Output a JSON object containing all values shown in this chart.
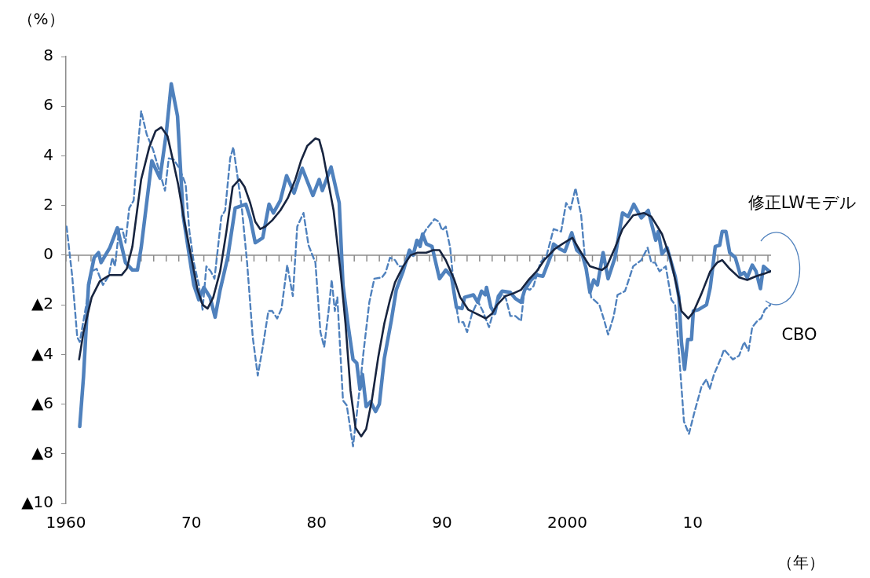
{
  "chart_data": {
    "type": "line",
    "xlabel": "（年）",
    "ylabel": "（%）",
    "xlim": [
      1960,
      2016.25
    ],
    "xticks": [
      1960,
      {
        "value": 1970,
        "label": "70"
      },
      {
        "value": 1980,
        "label": "80"
      },
      {
        "value": 1990,
        "label": "90"
      },
      2000,
      {
        "value": 2010,
        "label": "10"
      }
    ],
    "ylim": [
      -10,
      8
    ],
    "yticks": [
      {
        "value": -10,
        "label": "▲10"
      },
      {
        "value": -8,
        "label": "▲8"
      },
      {
        "value": -6,
        "label": "▲6"
      },
      {
        "value": -4,
        "label": "▲4"
      },
      {
        "value": -2,
        "label": "▲2"
      },
      0,
      2,
      4,
      6,
      8
    ],
    "grid": false,
    "legend": false,
    "marker": "none",
    "ref_lines": [
      {
        "axis": "y",
        "value": 0,
        "color": "#8c8c8c"
      }
    ],
    "annotations": [
      "修正LWモデル",
      "CBO"
    ],
    "series": [
      {
        "color": "#4f81bd",
        "line_style": "solid",
        "x": [
          1961.1,
          1961.4,
          1961.8,
          1962.25,
          1962.6,
          1962.8,
          1963.5,
          1964.1,
          1964.75,
          1965.3,
          1965.7,
          1966.0,
          1966.85,
          1967.5,
          1968.0,
          1968.4,
          1968.9,
          1969.35,
          1970.2,
          1970.6,
          1971.0,
          1971.5,
          1971.9,
          1972.3,
          1972.9,
          1973.5,
          1974.35,
          1974.7,
          1975.1,
          1975.7,
          1976.2,
          1976.55,
          1977.1,
          1977.6,
          1978.2,
          1978.85,
          1979.7,
          1980.2,
          1980.45,
          1981.15,
          1981.8,
          1982.1,
          1982.5,
          1982.9,
          1983.2,
          1983.45,
          1983.65,
          1983.95,
          1984.3,
          1984.7,
          1985.0,
          1985.4,
          1985.95,
          1986.35,
          1986.9,
          1987.4,
          1987.7,
          1988.0,
          1988.25,
          1988.45,
          1988.75,
          1989.2,
          1989.8,
          1990.3,
          1990.75,
          1991.15,
          1991.6,
          1991.8,
          1992.5,
          1992.85,
          1993.15,
          1993.45,
          1993.55,
          1993.9,
          1994.2,
          1994.5,
          1994.8,
          1995.45,
          1995.85,
          1996.3,
          1996.6,
          1997.1,
          1997.55,
          1998.05,
          1998.7,
          1998.9,
          1999.4,
          1999.8,
          2000.35,
          2000.75,
          2001.2,
          2001.5,
          2001.8,
          2002.1,
          2002.4,
          2002.85,
          2003.25,
          2003.8,
          2004.4,
          2004.85,
          2005.3,
          2005.9,
          2006.45,
          2007.05,
          2007.25,
          2007.55,
          2007.95,
          2008.6,
          2008.9,
          2009.1,
          2009.35,
          2009.6,
          2009.9,
          2010.05,
          2010.45,
          2011.1,
          2011.4,
          2011.8,
          2012.15,
          2012.35,
          2012.65,
          2012.95,
          2013.4,
          2013.8,
          2014.1,
          2014.35,
          2014.75,
          2015.05,
          2015.4,
          2015.65,
          2016.1
        ],
        "values": [
          -6.9,
          -4.9,
          -1.2,
          -0.1,
          0.1,
          -0.3,
          0.3,
          1.1,
          -0.3,
          -0.6,
          -0.6,
          0.3,
          3.8,
          3.1,
          4.9,
          6.9,
          5.6,
          1.6,
          -1.2,
          -1.8,
          -1.3,
          -1.7,
          -2.5,
          -1.4,
          -0.1,
          1.9,
          2.05,
          1.5,
          0.5,
          0.7,
          2.05,
          1.7,
          2.2,
          3.2,
          2.5,
          3.5,
          2.4,
          3.05,
          2.6,
          3.55,
          2.1,
          -1.2,
          -2.8,
          -4.2,
          -4.35,
          -5.4,
          -4.8,
          -6.1,
          -5.9,
          -6.3,
          -6.0,
          -4.15,
          -2.65,
          -1.4,
          -0.65,
          0.2,
          0,
          0.6,
          0.35,
          0.85,
          0.45,
          0.35,
          -0.95,
          -0.6,
          -0.85,
          -2.1,
          -2.15,
          -1.7,
          -1.6,
          -1.9,
          -1.45,
          -1.6,
          -1.3,
          -2.1,
          -2.35,
          -1.65,
          -1.45,
          -1.5,
          -1.75,
          -1.9,
          -1.4,
          -1.0,
          -0.8,
          -0.85,
          0,
          0.45,
          0.25,
          0.15,
          0.9,
          0.2,
          0,
          -0.55,
          -1.5,
          -1.0,
          -1.2,
          0.1,
          -0.95,
          -0.1,
          1.7,
          1.55,
          2.05,
          1.5,
          1.8,
          0.6,
          0.95,
          0.05,
          0.3,
          -0.85,
          -1.7,
          -3.5,
          -4.6,
          -3.4,
          -3.4,
          -2.25,
          -2.2,
          -2.0,
          -1.3,
          0.35,
          0.4,
          0.95,
          0.95,
          0.1,
          -0.1,
          -0.8,
          -0.7,
          -0.9,
          -0.4,
          -0.65,
          -1.35,
          -0.45,
          -0.65
        ]
      },
      {
        "color": "#17243f",
        "line_style": "solid",
        "x": [
          1961.05,
          1961.4,
          1962.05,
          1962.7,
          1963.5,
          1964.45,
          1964.85,
          1965.3,
          1966.0,
          1966.65,
          1967.15,
          1967.6,
          1968.1,
          1968.5,
          1968.95,
          1969.45,
          1970.0,
          1970.5,
          1970.9,
          1971.3,
          1971.75,
          1972.3,
          1972.8,
          1973.3,
          1973.85,
          1974.25,
          1974.7,
          1975.1,
          1975.5,
          1975.9,
          1976.45,
          1977.1,
          1977.7,
          1978.3,
          1978.75,
          1979.25,
          1979.9,
          1980.2,
          1980.5,
          1981.35,
          1981.9,
          1982.3,
          1982.7,
          1983.1,
          1983.55,
          1983.95,
          1984.4,
          1984.9,
          1985.4,
          1985.85,
          1986.25,
          1986.9,
          1987.5,
          1988.05,
          1988.75,
          1989.3,
          1989.8,
          1990.3,
          1990.95,
          1991.45,
          1992.1,
          1992.7,
          1993.5,
          1994.0,
          1994.4,
          1995.05,
          1995.65,
          1996.3,
          1996.9,
          1997.55,
          1998.15,
          1999.0,
          1999.6,
          2000.4,
          2001.1,
          2001.8,
          2002.75,
          2003.15,
          2003.8,
          2004.4,
          2005.25,
          2006.1,
          2006.7,
          2007.55,
          2008.2,
          2008.7,
          2009.1,
          2009.65,
          2010.05,
          2010.7,
          2011.4,
          2011.95,
          2012.35,
          2012.95,
          2013.7,
          2014.35,
          2015.05,
          2015.7,
          2016.2
        ],
        "values": [
          -4.2,
          -3.1,
          -1.7,
          -1.05,
          -0.8,
          -0.8,
          -0.55,
          0.35,
          3.05,
          4.35,
          5.0,
          5.15,
          4.8,
          3.9,
          2.85,
          1.35,
          -0.1,
          -1.4,
          -2.0,
          -2.15,
          -1.7,
          -0.65,
          0.95,
          2.75,
          3.05,
          2.75,
          2.1,
          1.35,
          1.05,
          1.15,
          1.4,
          1.8,
          2.3,
          3.05,
          3.8,
          4.4,
          4.7,
          4.65,
          4.1,
          1.8,
          -0.65,
          -2.75,
          -5.45,
          -6.95,
          -7.3,
          -7.0,
          -5.85,
          -4.15,
          -2.75,
          -1.8,
          -1.1,
          -0.45,
          0,
          0.1,
          0.1,
          0.2,
          0.2,
          -0.2,
          -0.95,
          -1.7,
          -2.2,
          -2.35,
          -2.55,
          -2.35,
          -2.0,
          -1.65,
          -1.55,
          -1.4,
          -1.0,
          -0.65,
          -0.2,
          0.25,
          0.45,
          0.7,
          0.1,
          -0.45,
          -0.6,
          -0.45,
          0.3,
          1.05,
          1.6,
          1.7,
          1.55,
          0.85,
          -0.1,
          -1.2,
          -2.25,
          -2.55,
          -2.3,
          -1.55,
          -0.65,
          -0.3,
          -0.2,
          -0.55,
          -0.9,
          -1.0,
          -0.85,
          -0.75,
          -0.65
        ]
      },
      {
        "color": "#4f81bd",
        "line_style": "dashed",
        "x": [
          1960.05,
          1960.5,
          1960.9,
          1961.1,
          1961.5,
          1962.05,
          1962.45,
          1962.95,
          1963.4,
          1963.7,
          1963.9,
          1964.25,
          1964.5,
          1964.75,
          1965.05,
          1965.4,
          1965.7,
          1966.0,
          1966.45,
          1966.95,
          1967.5,
          1967.9,
          1968.2,
          1968.6,
          1969.05,
          1969.55,
          1969.85,
          1970.2,
          1970.6,
          1970.9,
          1971.2,
          1971.55,
          1971.85,
          1972.4,
          1972.7,
          1973.1,
          1973.35,
          1973.65,
          1974.05,
          1974.45,
          1974.9,
          1975.3,
          1975.7,
          1976.15,
          1976.45,
          1976.85,
          1977.2,
          1977.65,
          1978.1,
          1978.45,
          1978.95,
          1979.35,
          1979.9,
          1980.3,
          1980.6,
          1980.95,
          1981.2,
          1981.45,
          1981.65,
          1982.1,
          1982.4,
          1982.9,
          1983.35,
          1983.75,
          1984.2,
          1984.6,
          1985.2,
          1985.5,
          1985.85,
          1986.25,
          1986.55,
          1987.0,
          1987.3,
          1987.7,
          1988.1,
          1988.75,
          1989.4,
          1989.75,
          1990.0,
          1990.3,
          1990.65,
          1991.05,
          1991.35,
          1991.7,
          1992.0,
          1992.4,
          1992.85,
          1993.25,
          1993.75,
          1994.2,
          1994.8,
          1995.1,
          1995.45,
          1995.85,
          1996.3,
          1996.6,
          1997.0,
          1997.3,
          1997.85,
          1998.35,
          1998.9,
          1999.5,
          1999.9,
          2000.25,
          2000.65,
          2001.1,
          2001.4,
          2001.9,
          2002.55,
          2002.95,
          2003.25,
          2003.7,
          2004.0,
          2004.6,
          2005.25,
          2005.9,
          2006.4,
          2006.7,
          2007.0,
          2007.35,
          2007.85,
          2008.3,
          2008.6,
          2009.0,
          2009.3,
          2009.7,
          2010.15,
          2010.7,
          2011.1,
          2011.35,
          2011.7,
          2012.25,
          2012.5,
          2013.2,
          2013.7,
          2014.1,
          2014.45,
          2014.75,
          2015.15,
          2015.45,
          2015.75,
          2016.2
        ],
        "values": [
          1.15,
          -0.85,
          -3.3,
          -3.5,
          -2.35,
          -0.65,
          -0.55,
          -1.2,
          -0.85,
          -0.1,
          -0.45,
          1.05,
          1.05,
          0.5,
          1.9,
          2.2,
          4.15,
          5.8,
          4.85,
          4.25,
          3.3,
          2.6,
          3.9,
          3.85,
          3.5,
          2.85,
          0.95,
          -0.3,
          -1.2,
          -2.2,
          -0.45,
          -0.65,
          -0.95,
          1.55,
          1.8,
          3.9,
          4.35,
          3.3,
          1.8,
          -0.3,
          -3.3,
          -4.85,
          -3.7,
          -2.25,
          -2.25,
          -2.55,
          -2.15,
          -0.4,
          -1.65,
          1.15,
          1.7,
          0.4,
          -0.3,
          -3.1,
          -3.7,
          -2.25,
          -1.0,
          -2.25,
          -1.7,
          -5.85,
          -6.05,
          -7.7,
          -5.75,
          -3.85,
          -1.9,
          -0.95,
          -0.9,
          -0.7,
          -0.1,
          -0.2,
          -0.45,
          -0.45,
          0,
          0.1,
          0.5,
          1.05,
          1.45,
          1.35,
          1.0,
          1.15,
          0.3,
          -1.8,
          -2.7,
          -2.7,
          -3.1,
          -2.35,
          -1.85,
          -2.25,
          -2.9,
          -2.1,
          -1.55,
          -1.75,
          -2.45,
          -2.45,
          -2.65,
          -1.3,
          -1.4,
          -1.25,
          -0.3,
          0,
          1.05,
          0.95,
          2.1,
          1.85,
          2.7,
          1.6,
          -0.1,
          -1.7,
          -2.0,
          -2.65,
          -3.2,
          -2.45,
          -1.6,
          -1.45,
          -0.45,
          -0.2,
          0.3,
          -0.3,
          -0.3,
          -0.65,
          -0.45,
          -1.8,
          -2.0,
          -4.6,
          -6.7,
          -7.2,
          -6.3,
          -5.3,
          -5.0,
          -5.4,
          -4.8,
          -4.15,
          -3.8,
          -4.2,
          -4.05,
          -3.5,
          -3.85,
          -2.9,
          -2.65,
          -2.55,
          -2.2,
          -2.0
        ]
      }
    ]
  }
}
